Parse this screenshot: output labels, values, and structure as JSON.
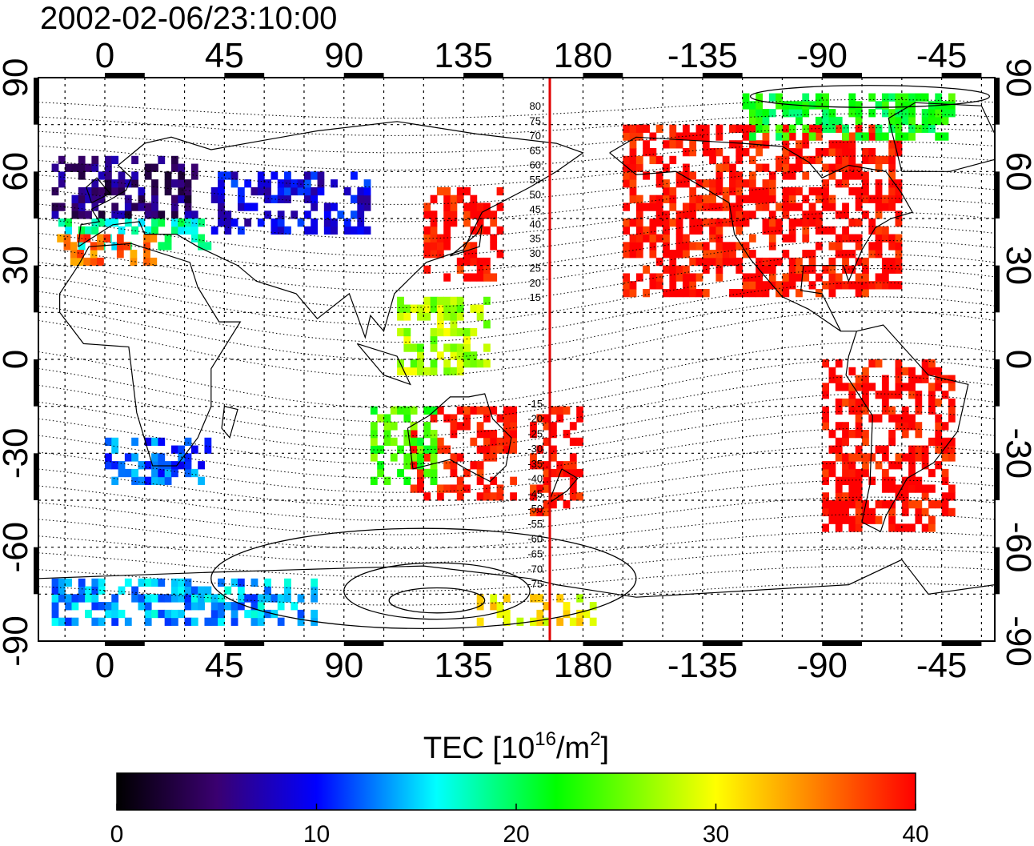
{
  "title": "2002-02-06/23:10:00",
  "map": {
    "lon_range": [
      -25,
      335
    ],
    "lat_range": [
      -90,
      90
    ],
    "lon_ticks": [
      {
        "value": 0,
        "label": "0"
      },
      {
        "value": 45,
        "label": "45"
      },
      {
        "value": 90,
        "label": "90"
      },
      {
        "value": 135,
        "label": "135"
      },
      {
        "value": 180,
        "label": "180"
      },
      {
        "value": 225,
        "label": "-135"
      },
      {
        "value": 270,
        "label": "-90"
      },
      {
        "value": 315,
        "label": "-45"
      }
    ],
    "lat_ticks": [
      {
        "value": 90,
        "label": "90"
      },
      {
        "value": 60,
        "label": "60"
      },
      {
        "value": 30,
        "label": "30"
      },
      {
        "value": 0,
        "label": "0"
      },
      {
        "value": -30,
        "label": "-30"
      },
      {
        "value": -60,
        "label": "-60"
      },
      {
        "value": -90,
        "label": "-90"
      }
    ],
    "terminator_lon": 167.5,
    "grid": true,
    "contour_labels_north": [
      "80",
      "75",
      "70",
      "65",
      "60",
      "55",
      "50",
      "45",
      "40",
      "35",
      "30",
      "25",
      "20",
      "15"
    ],
    "contour_labels_south": [
      "-15",
      "-20",
      "-25",
      "-30",
      "-35",
      "-40",
      "-45",
      "-50",
      "-55",
      "-60",
      "-65",
      "-70",
      "-75"
    ],
    "tec_regions": [
      {
        "lon": [
          -20,
          35
        ],
        "lat": [
          45,
          65
        ],
        "value": 5
      },
      {
        "lon": [
          -20,
          40
        ],
        "lat": [
          35,
          45
        ],
        "value": 18
      },
      {
        "lon": [
          -18,
          20
        ],
        "lat": [
          30,
          38
        ],
        "value": 36
      },
      {
        "lon": [
          40,
          100
        ],
        "lat": [
          40,
          60
        ],
        "value": 9
      },
      {
        "lon": [
          120,
          150
        ],
        "lat": [
          25,
          55
        ],
        "value": 40
      },
      {
        "lon": [
          110,
          145
        ],
        "lat": [
          -5,
          20
        ],
        "value": 27
      },
      {
        "lon": [
          115,
          155
        ],
        "lat": [
          -45,
          -15
        ],
        "value": 40
      },
      {
        "lon": [
          160,
          180
        ],
        "lat": [
          -50,
          -15
        ],
        "value": 40
      },
      {
        "lon": [
          100,
          125
        ],
        "lat": [
          -40,
          -15
        ],
        "value": 24
      },
      {
        "lon": [
          0,
          40
        ],
        "lat": [
          -40,
          -25
        ],
        "value": 12
      },
      {
        "lon": [
          -20,
          80
        ],
        "lat": [
          -85,
          -70
        ],
        "value": 14
      },
      {
        "lon": [
          140,
          185
        ],
        "lat": [
          -85,
          -75
        ],
        "value": 30
      },
      {
        "lon": [
          195,
          300
        ],
        "lat": [
          20,
          75
        ],
        "value": 40
      },
      {
        "lon": [
          270,
          320
        ],
        "lat": [
          -55,
          0
        ],
        "value": 40
      },
      {
        "lon": [
          240,
          320
        ],
        "lat": [
          70,
          85
        ],
        "value": 22
      }
    ]
  },
  "colorbar": {
    "title_base": "TEC  [10",
    "title_exp1": "16",
    "title_mid": "/m",
    "title_exp2": "2",
    "title_end": "]",
    "min": 0,
    "max": 40,
    "ticks": [
      {
        "value": 0,
        "label": "0"
      },
      {
        "value": 10,
        "label": "10"
      },
      {
        "value": 20,
        "label": "20"
      },
      {
        "value": 30,
        "label": "30"
      },
      {
        "value": 40,
        "label": "40"
      }
    ],
    "stops": [
      "#000000",
      "#3a0070",
      "#0000ff",
      "#00ffff",
      "#00ff00",
      "#ffff00",
      "#ff8000",
      "#ff0000"
    ],
    "stop_values": [
      0,
      5,
      10,
      16,
      22,
      30,
      35,
      40
    ]
  },
  "colors": {
    "terminator": "#e00000",
    "frame": "#000000",
    "grid": "#000000"
  }
}
